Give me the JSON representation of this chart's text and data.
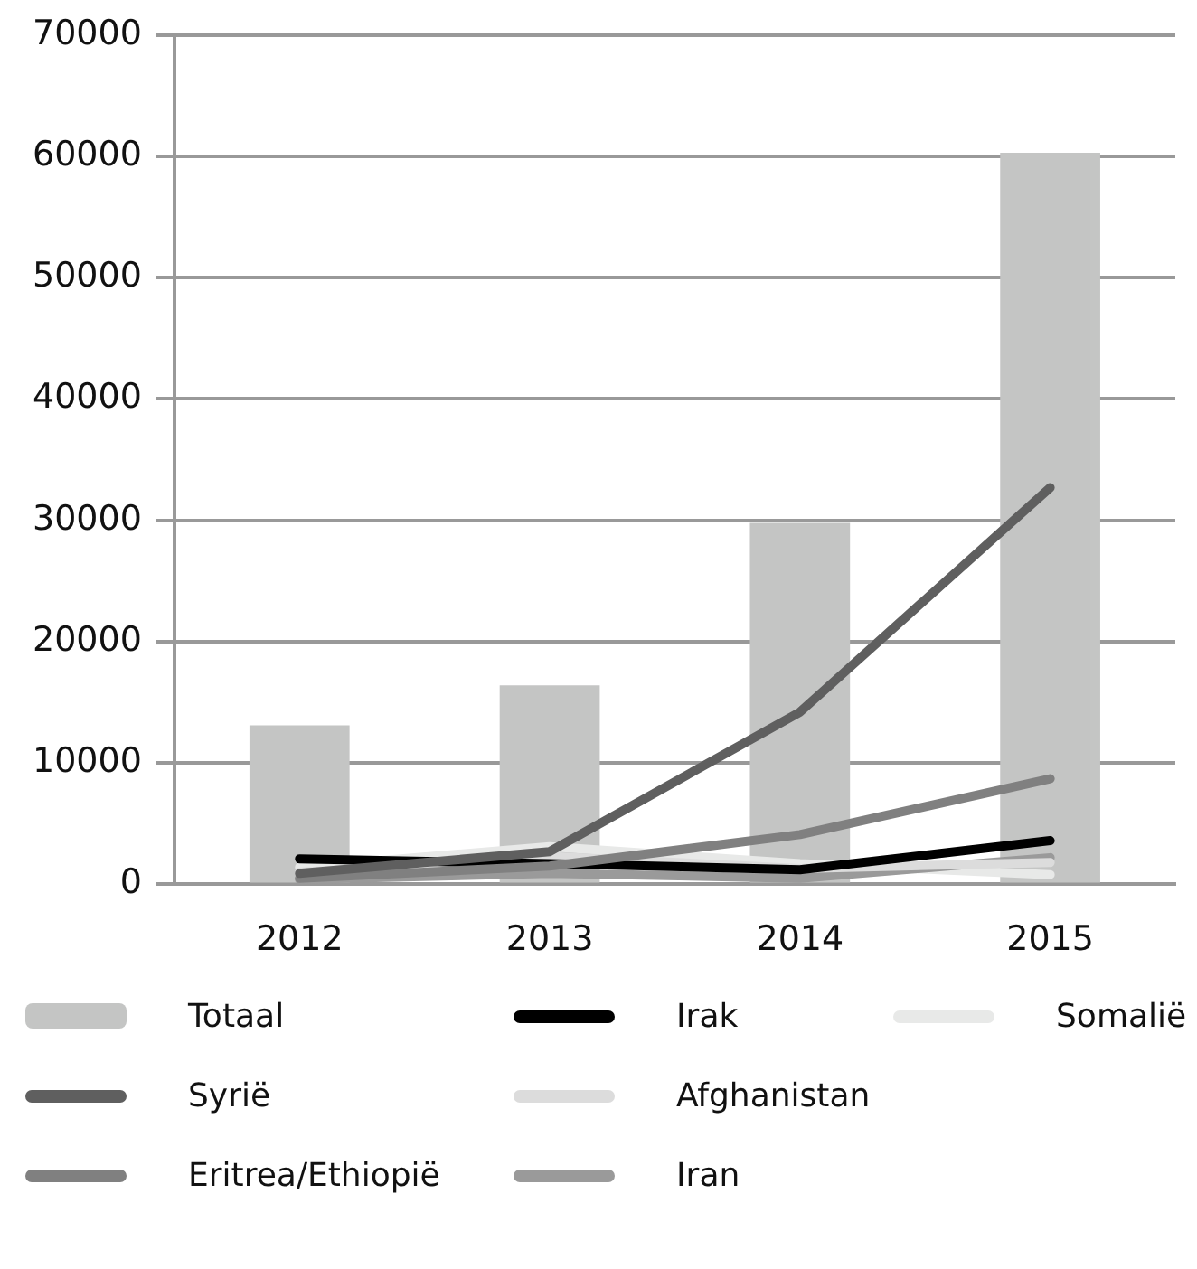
{
  "chart_data": {
    "type": "bar",
    "categories": [
      "2012",
      "2013",
      "2014",
      "2015"
    ],
    "series": [
      {
        "name": "Totaal",
        "color": "#c4c5c4",
        "values": [
          13100,
          16400,
          29800,
          60300
        ]
      },
      {
        "name": "Syrië",
        "type": "line",
        "color": "#5f5f5f",
        "values": [
          900,
          2700,
          14200,
          32700
        ]
      },
      {
        "name": "Eritrea/Ethiopië",
        "type": "line",
        "color": "#808080",
        "values": [
          500,
          1500,
          4100,
          8700
        ]
      },
      {
        "name": "Irak",
        "type": "line",
        "color": "#000000",
        "values": [
          2100,
          1700,
          1200,
          3600
        ]
      },
      {
        "name": "Afghanistan",
        "type": "line",
        "color": "#dcdcdc",
        "values": [
          1000,
          2300,
          1300,
          1800
        ]
      },
      {
        "name": "Iran",
        "type": "line",
        "color": "#9a9a9a",
        "values": [
          400,
          900,
          500,
          2200
        ]
      },
      {
        "name": "Somalië",
        "type": "line",
        "color": "#e8e9e8",
        "values": [
          1400,
          3100,
          1700,
          800
        ]
      }
    ],
    "ylim": [
      0,
      70000
    ],
    "yticks": [
      0,
      10000,
      20000,
      30000,
      40000,
      50000,
      60000,
      70000
    ],
    "grid": "y",
    "legend": "bottom",
    "marker": "none"
  }
}
